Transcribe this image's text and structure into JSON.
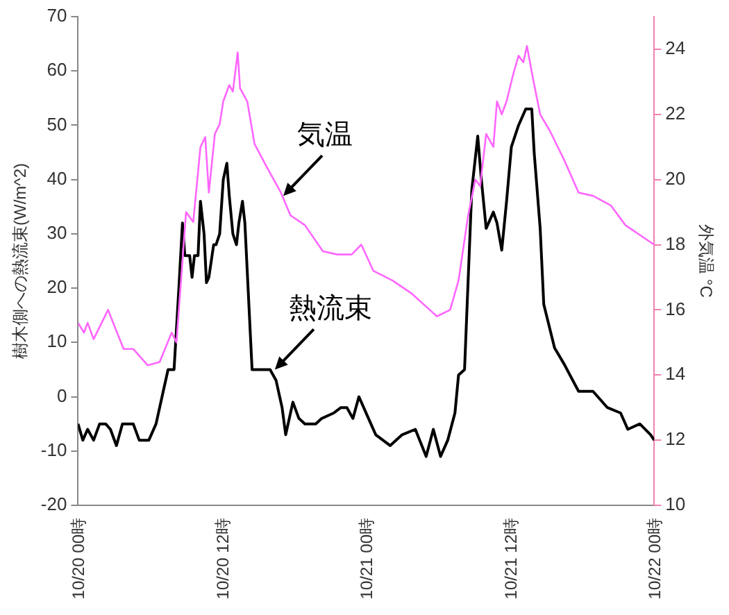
{
  "chart_data": {
    "type": "line",
    "ylabel": "樹木側への熱流束(W/m^2)",
    "y2label": "外気温 °C",
    "xlim": [
      "--10-20T00:00",
      "--10-22T00:00"
    ],
    "xticks": [
      {
        "value": "--10-20T00:00",
        "label": "10/20 00時"
      },
      {
        "value": "--10-20T12:00",
        "label": "10/20 12時"
      },
      {
        "value": "--10-21T00:00",
        "label": "10/21 00時"
      },
      {
        "value": "--10-21T12:00",
        "label": "10/21 12時"
      },
      {
        "value": "--10-22T00:00",
        "label": "10/22 00時"
      }
    ],
    "ylim": [
      -20,
      70
    ],
    "yticks": [
      -20,
      -10,
      0,
      10,
      20,
      30,
      40,
      50,
      60,
      70
    ],
    "y2lim": [
      10,
      25
    ],
    "y2ticks": [
      10,
      12,
      14,
      16,
      18,
      20,
      22,
      24
    ],
    "grid": false,
    "legend": false,
    "marker": "none",
    "line_style": "solid",
    "series": [
      {
        "color": "#ff66ff",
        "axis": "y2",
        "x": [
          "--10-20T00:00",
          "--10-20T00:30",
          "--10-20T00:48",
          "--10-20T01:18",
          "--10-20T02:30",
          "--10-20T03:48",
          "--10-20T04:36",
          "--10-20T05:48",
          "--10-20T06:48",
          "--10-20T07:48",
          "--10-20T08:12",
          "--10-20T09:00",
          "--10-20T09:36",
          "--10-20T10:12",
          "--10-20T10:36",
          "--10-20T10:54",
          "--10-20T11:24",
          "--10-20T11:48",
          "--10-20T12:06",
          "--10-20T12:36",
          "--10-20T12:54",
          "--10-20T13:18",
          "--10-20T13:30",
          "--10-20T14:06",
          "--10-20T14:42",
          "--10-20T15:42",
          "--10-20T16:54",
          "--10-20T17:42",
          "--10-20T18:54",
          "--10-20T20:24",
          "--10-20T21:36",
          "--10-20T22:48",
          "--10-20T23:36",
          "--10-21T00:36",
          "--10-21T02:12",
          "--10-21T03:48",
          "--10-21T05:18",
          "--10-21T05:54",
          "--10-21T07:00",
          "--10-21T07:42",
          "--10-21T08:30",
          "--10-21T09:06",
          "--10-21T09:30",
          "--10-21T10:00",
          "--10-21T10:36",
          "--10-21T10:54",
          "--10-21T11:18",
          "--10-21T11:42",
          "--10-21T12:18",
          "--10-21T12:42",
          "--10-21T13:06",
          "--10-21T13:24",
          "--10-21T13:54",
          "--10-21T14:30",
          "--10-21T15:18",
          "--10-21T16:30",
          "--10-21T17:42",
          "--10-21T18:54",
          "--10-21T20:24",
          "--10-21T21:36",
          "--10-21T22:48",
          "--10-22T00:00"
        ],
        "values": [
          15.6,
          15.3,
          15.6,
          15.1,
          16.0,
          14.8,
          14.8,
          14.3,
          14.4,
          15.3,
          15.0,
          19.0,
          18.7,
          21.0,
          21.3,
          19.6,
          21.4,
          21.7,
          22.4,
          22.9,
          22.7,
          23.9,
          22.8,
          22.4,
          21.1,
          20.4,
          19.6,
          18.9,
          18.6,
          17.8,
          17.7,
          17.7,
          18.0,
          17.2,
          16.9,
          16.5,
          16.0,
          15.8,
          16.0,
          16.9,
          18.9,
          20.0,
          19.8,
          21.4,
          21.0,
          22.4,
          22.0,
          22.4,
          23.3,
          23.8,
          23.6,
          24.1,
          23.1,
          22.0,
          21.5,
          20.6,
          19.6,
          19.5,
          19.2,
          18.6,
          18.3,
          18.0
        ]
      },
      {
        "color": "#000000",
        "x": [
          "--10-20T00:00",
          "--10-20T00:24",
          "--10-20T00:48",
          "--10-20T01:18",
          "--10-20T01:48",
          "--10-20T02:18",
          "--10-20T02:42",
          "--10-20T03:12",
          "--10-20T03:42",
          "--10-20T04:36",
          "--10-20T05:06",
          "--10-20T05:54",
          "--10-20T06:30",
          "--10-20T07:00",
          "--10-20T07:30",
          "--10-20T08:00",
          "--10-20T08:24",
          "--10-20T08:42",
          "--10-20T08:54",
          "--10-20T09:18",
          "--10-20T09:30",
          "--10-20T09:42",
          "--10-20T10:00",
          "--10-20T10:12",
          "--10-20T10:30",
          "--10-20T10:42",
          "--10-20T10:54",
          "--10-20T11:18",
          "--10-20T11:30",
          "--10-20T11:48",
          "--10-20T12:06",
          "--10-20T12:24",
          "--10-20T12:36",
          "--10-20T12:54",
          "--10-20T13:12",
          "--10-20T13:24",
          "--10-20T13:42",
          "--10-20T13:54",
          "--10-20T14:30",
          "--10-20T16:00",
          "--10-20T16:30",
          "--10-20T17:00",
          "--10-20T17:18",
          "--10-20T17:36",
          "--10-20T17:54",
          "--10-20T18:24",
          "--10-20T18:54",
          "--10-20T19:48",
          "--10-20T20:18",
          "--10-20T21:18",
          "--10-20T21:54",
          "--10-20T22:24",
          "--10-20T22:54",
          "--10-20T23:24",
          "--10-21T00:12",
          "--10-21T00:48",
          "--10-21T02:00",
          "--10-21T03:00",
          "--10-21T04:06",
          "--10-21T05:00",
          "--10-21T05:36",
          "--10-21T06:12",
          "--10-21T06:48",
          "--10-21T07:24",
          "--10-21T07:42",
          "--10-21T08:12",
          "--10-21T08:48",
          "--10-21T09:18",
          "--10-21T09:36",
          "--10-21T10:00",
          "--10-21T10:36",
          "--10-21T10:54",
          "--10-21T11:18",
          "--10-21T11:42",
          "--10-21T12:06",
          "--10-21T12:42",
          "--10-21T13:18",
          "--10-21T13:48",
          "--10-21T14:00",
          "--10-21T14:30",
          "--10-21T14:48",
          "--10-21T15:42",
          "--10-21T16:30",
          "--10-21T17:42",
          "--10-21T18:54",
          "--10-21T20:06",
          "--10-21T21:12",
          "--10-21T21:48",
          "--10-21T22:48",
          "--10-21T23:42",
          "--10-22T00:00"
        ],
        "values": [
          -5,
          -8,
          -6,
          -8,
          -5,
          -5,
          -6,
          -9,
          -5,
          -5,
          -8,
          -8,
          -5,
          0,
          5,
          5,
          20,
          32,
          26,
          26,
          22,
          26,
          26,
          36,
          30,
          21,
          22,
          28,
          28,
          30,
          40,
          43,
          37,
          30,
          28,
          32,
          36,
          32,
          5,
          5,
          3,
          -2,
          -7,
          -4,
          -1,
          -4,
          -5,
          -5,
          -4,
          -3,
          -2,
          -2,
          -4,
          0,
          -4,
          -7,
          -9,
          -7,
          -6,
          -11,
          -6,
          -11,
          -8,
          -3,
          4,
          5,
          38,
          48,
          40,
          31,
          34,
          32,
          27,
          36,
          46,
          50,
          53,
          53,
          45,
          31,
          17,
          9,
          6,
          1,
          1,
          -2,
          -3,
          -6,
          -5,
          -7,
          -8
        ]
      }
    ],
    "annotations": [
      {
        "text": "気温",
        "x": "--10-20T17:06",
        "y": 37
      },
      {
        "text": "熱流束",
        "x": "--10-20T16:24",
        "y": 5
      }
    ]
  }
}
